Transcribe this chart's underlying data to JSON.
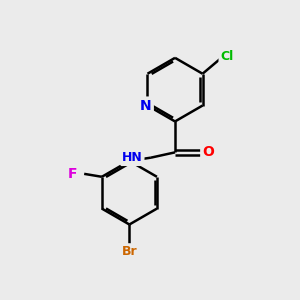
{
  "background_color": "#ebebeb",
  "bond_color": "#000000",
  "atom_colors": {
    "N": "#0000ee",
    "O": "#ff0000",
    "Cl": "#00bb00",
    "F": "#dd00dd",
    "Br": "#cc6600",
    "H": "#000000",
    "C": "#000000"
  },
  "bond_width": 1.8,
  "figsize": [
    3.0,
    3.0
  ],
  "dpi": 100
}
